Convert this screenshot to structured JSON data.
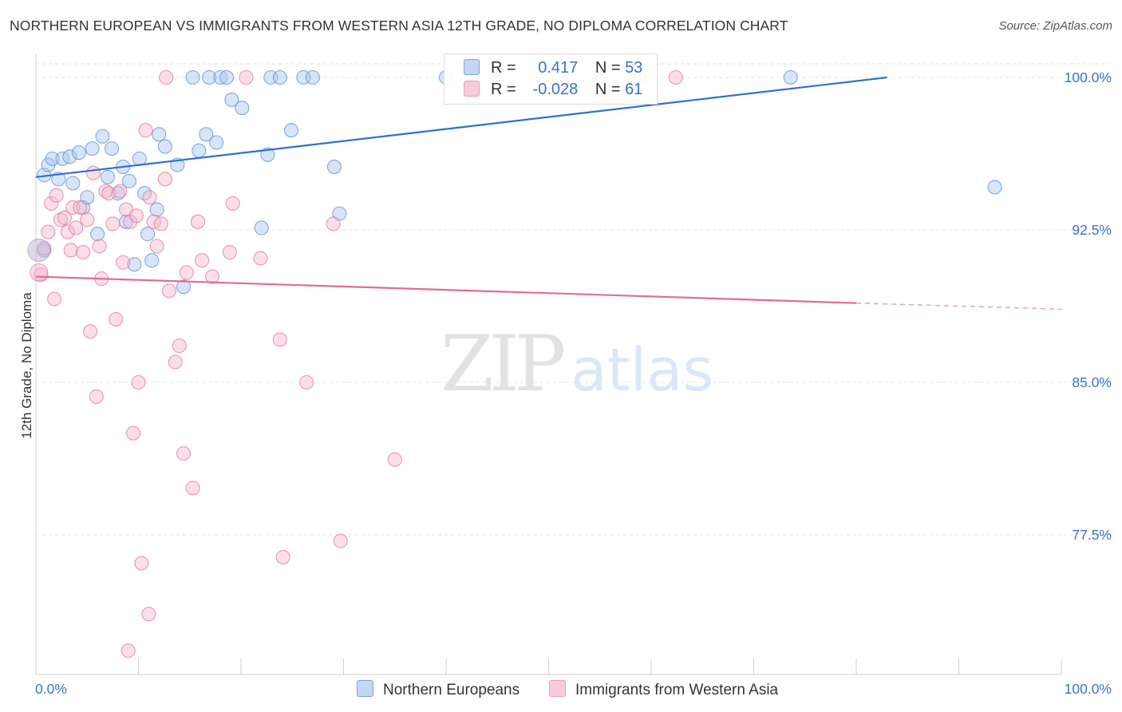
{
  "title": "NORTHERN EUROPEAN VS IMMIGRANTS FROM WESTERN ASIA 12TH GRADE, NO DIPLOMA CORRELATION CHART",
  "source": "Source: ZipAtlas.com",
  "watermark": {
    "zip": "ZIP",
    "atlas": "atlas"
  },
  "legend": {
    "r_label": "R =",
    "n_label": "N =",
    "rows": [
      {
        "r": "0.417",
        "n": "53",
        "color": "#a9c6f0"
      },
      {
        "r": "-0.028",
        "n": "61",
        "color": "#f6b8cb"
      }
    ]
  },
  "bottom_legend": [
    "Northern Europeans",
    "Immigrants from Western Asia"
  ],
  "chart_data": {
    "type": "scatter",
    "title": "NORTHERN EUROPEAN VS IMMIGRANTS FROM WESTERN ASIA 12TH GRADE, NO DIPLOMA CORRELATION CHART",
    "xlabel": "",
    "ylabel": "12th Grade, No Diploma",
    "xlim": [
      0,
      100
    ],
    "ylim": [
      71.3,
      100.5
    ],
    "x_tick_labels": [
      "0.0%",
      "100.0%"
    ],
    "y_ticks": [
      77.5,
      85.0,
      92.5,
      100.0
    ],
    "y_tick_labels": [
      "77.5%",
      "85.0%",
      "92.5%",
      "100.0%"
    ],
    "grid": true,
    "legend_position": "top-center",
    "series": [
      {
        "name": "Northern Europeans",
        "color": "#5b8fd6",
        "fill": "#a9c6f0",
        "r": 0.417,
        "n": 53,
        "trend": {
          "x0": 0,
          "y0": 95.1,
          "x1": 83,
          "y1": 100.0,
          "dashed_to": null
        },
        "points": [
          [
            0.8,
            91.5
          ],
          [
            0.8,
            95.2
          ],
          [
            1.2,
            95.7
          ],
          [
            1.6,
            96.0
          ],
          [
            2.2,
            95.0
          ],
          [
            2.6,
            96.0
          ],
          [
            3.3,
            96.1
          ],
          [
            3.6,
            94.8
          ],
          [
            4.2,
            96.3
          ],
          [
            4.6,
            93.6
          ],
          [
            5.0,
            94.1
          ],
          [
            5.5,
            96.5
          ],
          [
            6.0,
            92.3
          ],
          [
            6.5,
            97.1
          ],
          [
            7.0,
            95.1
          ],
          [
            7.4,
            96.5
          ],
          [
            8.0,
            94.3
          ],
          [
            8.5,
            95.6
          ],
          [
            8.8,
            92.9
          ],
          [
            9.1,
            94.9
          ],
          [
            9.6,
            90.8
          ],
          [
            10.1,
            96.0
          ],
          [
            10.6,
            94.3
          ],
          [
            10.9,
            92.3
          ],
          [
            11.3,
            91.0
          ],
          [
            11.8,
            93.5
          ],
          [
            12.0,
            97.2
          ],
          [
            12.6,
            96.6
          ],
          [
            13.8,
            95.7
          ],
          [
            14.4,
            89.7
          ],
          [
            15.3,
            100.0
          ],
          [
            15.9,
            96.4
          ],
          [
            16.6,
            97.2
          ],
          [
            16.9,
            100.0
          ],
          [
            17.6,
            96.8
          ],
          [
            18.0,
            100.0
          ],
          [
            18.6,
            100.0
          ],
          [
            19.1,
            98.9
          ],
          [
            20.1,
            98.5
          ],
          [
            22.0,
            92.6
          ],
          [
            22.6,
            96.2
          ],
          [
            22.9,
            100.0
          ],
          [
            23.8,
            100.0
          ],
          [
            24.9,
            97.4
          ],
          [
            26.1,
            100.0
          ],
          [
            27.0,
            100.0
          ],
          [
            29.1,
            95.6
          ],
          [
            29.6,
            93.3
          ],
          [
            54.9,
            100.0
          ],
          [
            58.9,
            100.0
          ],
          [
            73.6,
            100.0
          ],
          [
            93.5,
            94.6
          ],
          [
            40.0,
            100.0
          ]
        ]
      },
      {
        "name": "Immigrants from Western Asia",
        "color": "#e0789a",
        "fill": "#f6b8cb",
        "r": -0.028,
        "n": 61,
        "trend": {
          "x0": 0,
          "y0": 90.2,
          "x1": 80,
          "y1": 88.9,
          "dashed_to": {
            "x": 100,
            "y": 88.6
          }
        },
        "points": [
          [
            0.5,
            90.3
          ],
          [
            0.8,
            91.6
          ],
          [
            1.2,
            92.4
          ],
          [
            1.5,
            93.8
          ],
          [
            1.8,
            89.1
          ],
          [
            2.0,
            94.2
          ],
          [
            2.4,
            93.0
          ],
          [
            2.8,
            93.1
          ],
          [
            3.1,
            92.4
          ],
          [
            3.4,
            91.5
          ],
          [
            3.6,
            93.6
          ],
          [
            3.9,
            92.6
          ],
          [
            4.3,
            93.6
          ],
          [
            4.6,
            91.4
          ],
          [
            5.0,
            93.0
          ],
          [
            5.3,
            87.5
          ],
          [
            5.6,
            95.3
          ],
          [
            5.9,
            84.3
          ],
          [
            6.2,
            91.7
          ],
          [
            6.4,
            90.1
          ],
          [
            6.8,
            94.4
          ],
          [
            7.1,
            94.3
          ],
          [
            7.5,
            92.8
          ],
          [
            7.8,
            88.1
          ],
          [
            8.2,
            94.4
          ],
          [
            8.5,
            90.9
          ],
          [
            8.8,
            93.5
          ],
          [
            9.2,
            92.9
          ],
          [
            9.5,
            82.5
          ],
          [
            10.0,
            85.0
          ],
          [
            10.3,
            76.1
          ],
          [
            10.7,
            97.4
          ],
          [
            11.1,
            94.1
          ],
          [
            11.5,
            92.9
          ],
          [
            11.8,
            91.7
          ],
          [
            12.2,
            92.8
          ],
          [
            12.6,
            95.0
          ],
          [
            13.0,
            89.5
          ],
          [
            13.6,
            86.0
          ],
          [
            14.0,
            86.8
          ],
          [
            14.4,
            81.5
          ],
          [
            14.7,
            90.4
          ],
          [
            15.3,
            79.8
          ],
          [
            15.8,
            92.9
          ],
          [
            16.2,
            91.0
          ],
          [
            17.2,
            90.2
          ],
          [
            18.9,
            91.4
          ],
          [
            19.2,
            93.8
          ],
          [
            20.5,
            100.0
          ],
          [
            21.9,
            91.1
          ],
          [
            23.8,
            87.1
          ],
          [
            24.1,
            76.4
          ],
          [
            26.4,
            85.0
          ],
          [
            29.0,
            92.8
          ],
          [
            29.7,
            77.2
          ],
          [
            35.0,
            81.2
          ],
          [
            12.7,
            100.0
          ],
          [
            9.0,
            71.8
          ],
          [
            11.0,
            73.6
          ],
          [
            9.8,
            93.2
          ],
          [
            62.4,
            100.0
          ]
        ]
      }
    ]
  }
}
